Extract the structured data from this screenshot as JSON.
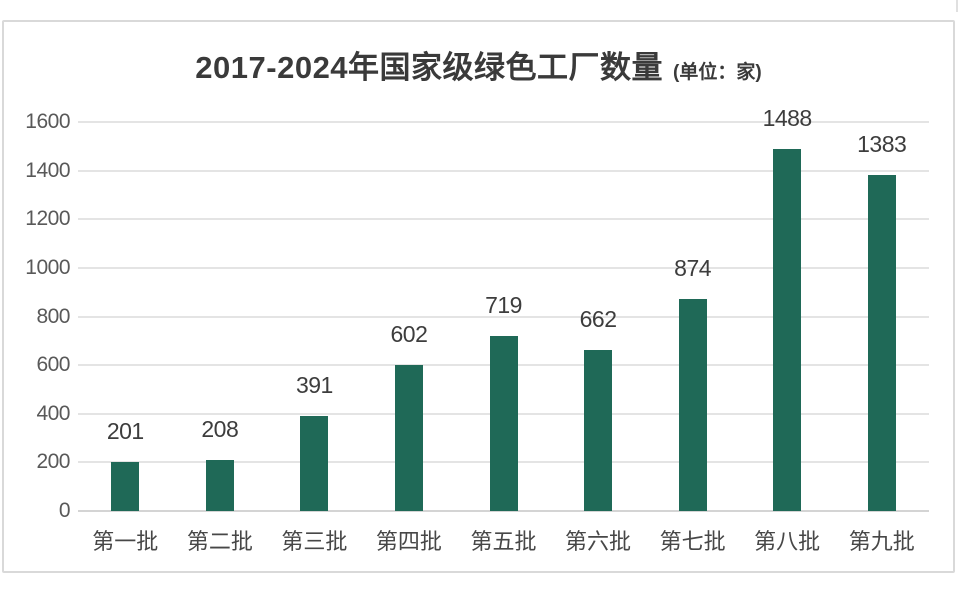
{
  "chart_data": {
    "type": "bar",
    "title": "2017-2024年国家级绿色工厂数量",
    "title_unit": "(单位：家)",
    "categories": [
      "第一批",
      "第二批",
      "第三批",
      "第四批",
      "第五批",
      "第六批",
      "第七批",
      "第八批",
      "第九批"
    ],
    "values": [
      201,
      208,
      391,
      602,
      719,
      662,
      874,
      1488,
      1383
    ],
    "y_ticks": [
      0,
      200,
      400,
      600,
      800,
      1000,
      1200,
      1400,
      1600
    ],
    "ylim": [
      0,
      1600
    ],
    "xlabel": "",
    "ylabel": "",
    "grid": true,
    "legend": "none",
    "data_labels": "outside-end",
    "bar_color": "#1f6957",
    "gridline_color": "#e4e4e4",
    "axis_line_color": "#d4d4d4",
    "title_color": "#3a3a3a",
    "y_tick_color": "#595959",
    "x_tick_color": "#474747",
    "value_label_color": "#3d3d3d",
    "frame_border_color": "#d9d9d9",
    "background_color": "#ffffff"
  }
}
